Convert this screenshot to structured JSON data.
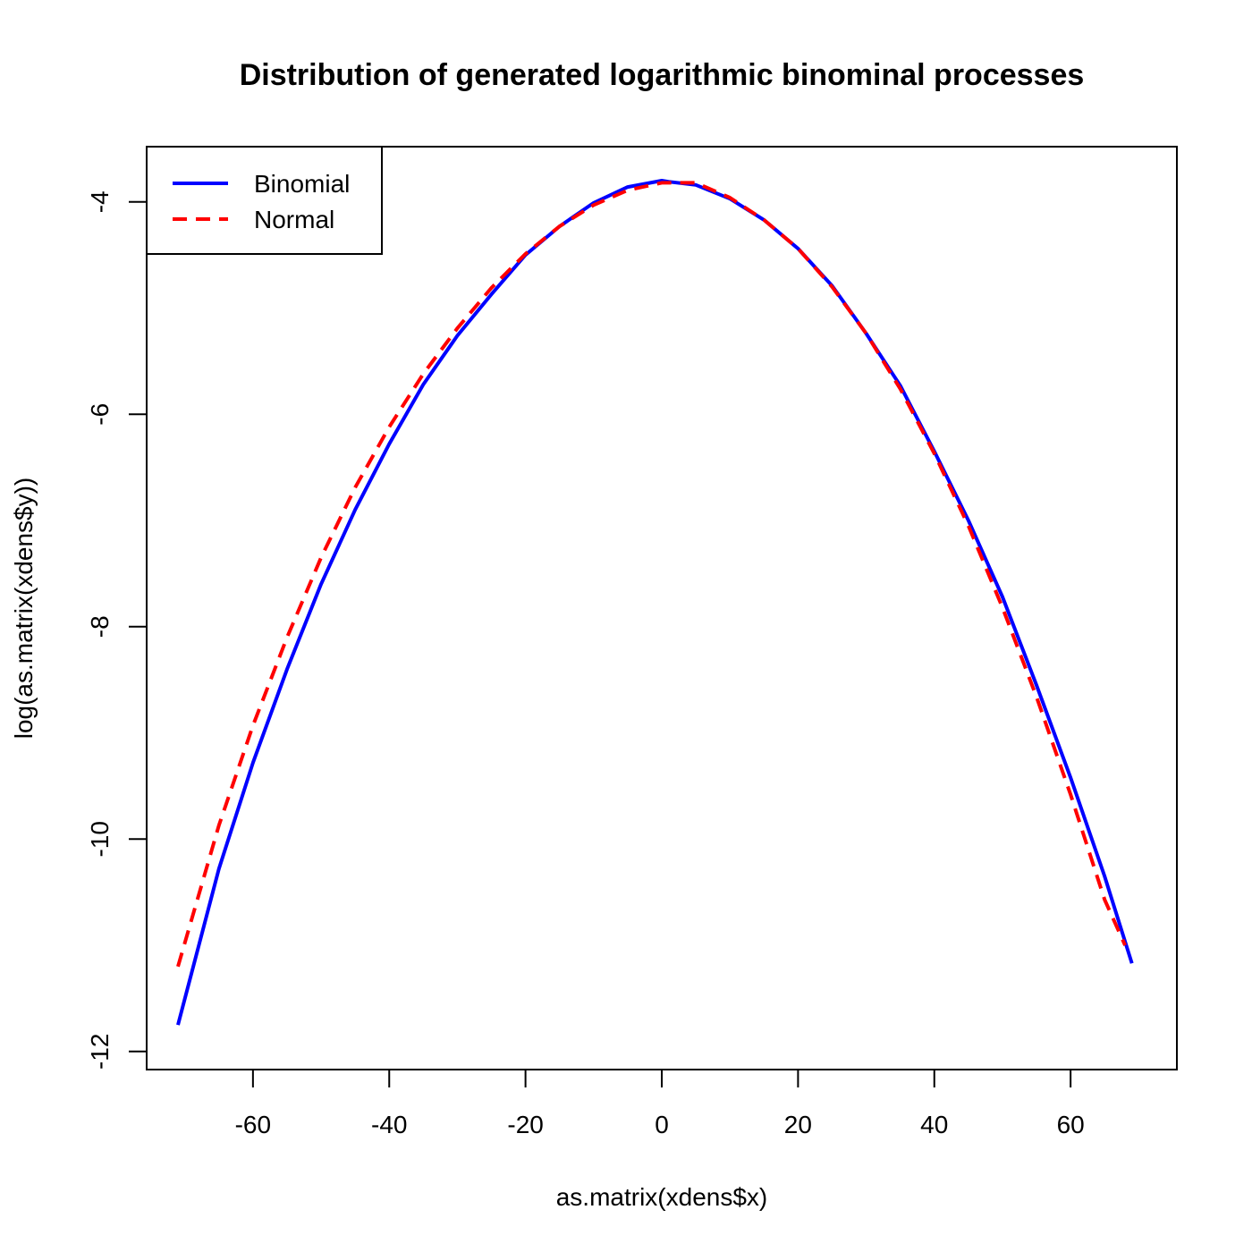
{
  "chart_data": {
    "type": "line",
    "title": "Distribution of generated logarithmic binominal processes",
    "xlabel": "as.matrix(xdens$x)",
    "ylabel": "log(as.matrix(xdens$y))",
    "xlim": [
      -75.6,
      75.6
    ],
    "ylim": [
      -12.17,
      -3.48
    ],
    "xticks": [
      -60,
      -40,
      -20,
      0,
      20,
      40,
      60
    ],
    "yticks": [
      -12,
      -10,
      -8,
      -6,
      -4
    ],
    "xtick_labels": [
      "-60",
      "-40",
      "-20",
      "0",
      "20",
      "40",
      "60"
    ],
    "ytick_labels": [
      "-12",
      "-10",
      "-8",
      "-6",
      "-4"
    ],
    "grid": false,
    "legend_position": "top-left",
    "series": [
      {
        "name": "Binomial",
        "color": "#0000ff",
        "line_style": "solid",
        "x": [
          -71,
          -65,
          -60,
          -55,
          -50,
          -45,
          -40,
          -35,
          -30,
          -25,
          -20,
          -15,
          -10,
          -5,
          0,
          1,
          5,
          10,
          15,
          20,
          25,
          30,
          35,
          40,
          45,
          50,
          55,
          60,
          65,
          69
        ],
        "y": [
          -11.75,
          -10.28,
          -9.28,
          -8.4,
          -7.6,
          -6.9,
          -6.28,
          -5.72,
          -5.26,
          -4.87,
          -4.5,
          -4.23,
          -4.01,
          -3.86,
          -3.8,
          -3.81,
          -3.84,
          -3.97,
          -4.17,
          -4.44,
          -4.79,
          -5.24,
          -5.73,
          -6.35,
          -7.0,
          -7.72,
          -8.55,
          -9.42,
          -10.35,
          -11.17
        ]
      },
      {
        "name": "Normal",
        "color": "#ff0000",
        "line_style": "dashed",
        "x": [
          -71,
          -65,
          -60,
          -55,
          -50,
          -45,
          -40,
          -35,
          -30,
          -25,
          -20,
          -15,
          -10,
          -5,
          0,
          5,
          10,
          15,
          20,
          25,
          30,
          35,
          40,
          45,
          50,
          55,
          60,
          65,
          68
        ],
        "y": [
          -11.2,
          -9.87,
          -8.93,
          -8.1,
          -7.35,
          -6.69,
          -6.12,
          -5.62,
          -5.19,
          -4.81,
          -4.49,
          -4.23,
          -4.03,
          -3.89,
          -3.82,
          -3.82,
          -3.96,
          -4.17,
          -4.44,
          -4.8,
          -5.24,
          -5.76,
          -6.37,
          -7.05,
          -7.82,
          -8.66,
          -9.58,
          -10.57,
          -11.0
        ]
      }
    ]
  }
}
